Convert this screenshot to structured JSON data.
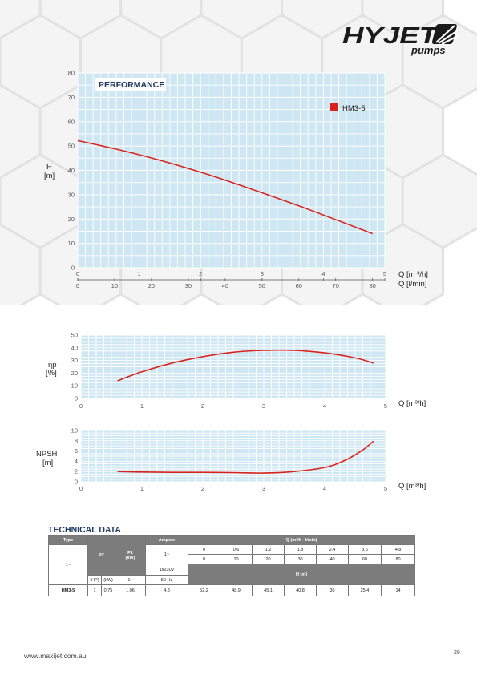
{
  "brand": {
    "name": "HYJET",
    "sub": "pumps"
  },
  "footer": {
    "url": "www.maxijet.com.au",
    "page": "29"
  },
  "colors": {
    "plot_bg": "#cfe7f3",
    "curve": "#d9231c",
    "header_gray": "#7c7c7c",
    "title_blue": "#1f3a62"
  },
  "chart_data": [
    {
      "type": "line",
      "title": "PERFORMANCE",
      "xlabel": "Q [m ³/h]",
      "xlabel2": "Q [l/min]",
      "ylabel": "H\n[m]",
      "xlim": [
        0,
        5
      ],
      "ylim": [
        0,
        80
      ],
      "x_ticks": [
        "0",
        "1",
        "2",
        "3",
        "4",
        "5"
      ],
      "x2_ticks": [
        "0",
        "10",
        "20",
        "30",
        "40",
        "50",
        "60",
        "70",
        "80"
      ],
      "y_ticks": [
        "0",
        "10",
        "20",
        "30",
        "40",
        "50",
        "60",
        "70",
        "80"
      ],
      "grid": true,
      "legend": "top-right",
      "series": [
        {
          "name": "HM3-5",
          "x": [
            0,
            0.6,
            1.2,
            1.8,
            2.4,
            3.6,
            4.8
          ],
          "y": [
            52.2,
            48.9,
            45.1,
            40.8,
            36,
            25.4,
            14
          ]
        }
      ]
    },
    {
      "type": "line",
      "xlabel": "Q [m³/h]",
      "ylabel": "ηp\n[%]",
      "xlim": [
        0,
        5
      ],
      "ylim": [
        0,
        50
      ],
      "x_ticks": [
        "0",
        "1",
        "2",
        "3",
        "4",
        "5"
      ],
      "y_ticks": [
        "0",
        "10",
        "20",
        "30",
        "40",
        "50"
      ],
      "grid": true,
      "series": [
        {
          "x": [
            0.6,
            1.0,
            1.5,
            2.0,
            2.5,
            3.0,
            3.5,
            4.0,
            4.5,
            4.8
          ],
          "y": [
            14,
            21,
            28,
            33,
            36.5,
            38,
            38,
            36,
            32,
            28
          ]
        }
      ]
    },
    {
      "type": "line",
      "xlabel": "Q [m³/h]",
      "ylabel": "NPSH\n[m]",
      "xlim": [
        0,
        5
      ],
      "ylim": [
        0,
        10
      ],
      "x_ticks": [
        "0",
        "1",
        "2",
        "3",
        "4",
        "5"
      ],
      "y_ticks": [
        "0",
        "2",
        "4",
        "6",
        "8",
        "10"
      ],
      "grid": true,
      "series": [
        {
          "x": [
            0.6,
            1.0,
            1.5,
            2.0,
            2.5,
            3.0,
            3.5,
            4.0,
            4.3,
            4.6,
            4.8
          ],
          "y": [
            2.0,
            1.9,
            1.85,
            1.85,
            1.8,
            1.7,
            2.0,
            2.8,
            4.0,
            6.0,
            7.9
          ]
        }
      ]
    }
  ],
  "tech": {
    "title": "TECHNICAL DATA",
    "type_header": "Type",
    "p2_header": "P2",
    "p1_header": "P1\n(kW)",
    "ampere_header": "Ampere",
    "q_header": "Q (m³/h - l/min)",
    "phase": "1~",
    "phase_amp": "1~",
    "voltage": "1x230V",
    "freq": "50 Hz",
    "hp_unit": "(HP)",
    "kw_unit": "(kW)",
    "phase_unit": "1~",
    "h_header": "H (m)",
    "q_m3h": [
      "0",
      "0.6",
      "1.2",
      "1.8",
      "2.4",
      "3.6",
      "4.8"
    ],
    "q_lmin": [
      "0",
      "10",
      "20",
      "30",
      "40",
      "60",
      "80"
    ],
    "row": {
      "model": "HM3-5",
      "hp": "1",
      "kw": "0.75",
      "p1": "1.06",
      "amp": "4.8",
      "h": [
        "52.2",
        "48.9",
        "45.1",
        "40.8",
        "36",
        "25.4",
        "14"
      ]
    }
  }
}
